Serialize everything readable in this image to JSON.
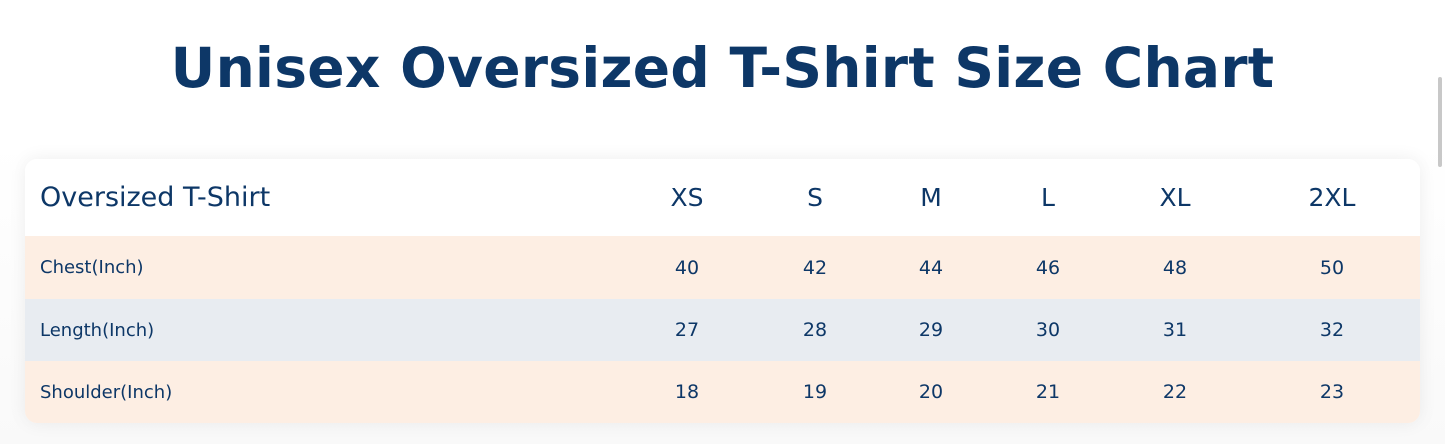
{
  "title": "Unisex Oversized T-Shirt Size Chart",
  "table": {
    "header": [
      "Oversized T-Shirt",
      "XS",
      "S",
      "M",
      "L",
      "XL",
      "2XL"
    ],
    "rows": [
      {
        "label": "Chest(Inch)",
        "values": [
          "40",
          "42",
          "44",
          "46",
          "48",
          "50"
        ]
      },
      {
        "label": "Length(Inch)",
        "values": [
          "27",
          "28",
          "29",
          "30",
          "31",
          "32"
        ]
      },
      {
        "label": "Shoulder(Inch)",
        "values": [
          "18",
          "19",
          "20",
          "21",
          "22",
          "23"
        ]
      }
    ]
  },
  "colors": {
    "text": "#0d3767",
    "row_peach": "#fdeee3",
    "row_gray": "#e8ecf1"
  }
}
